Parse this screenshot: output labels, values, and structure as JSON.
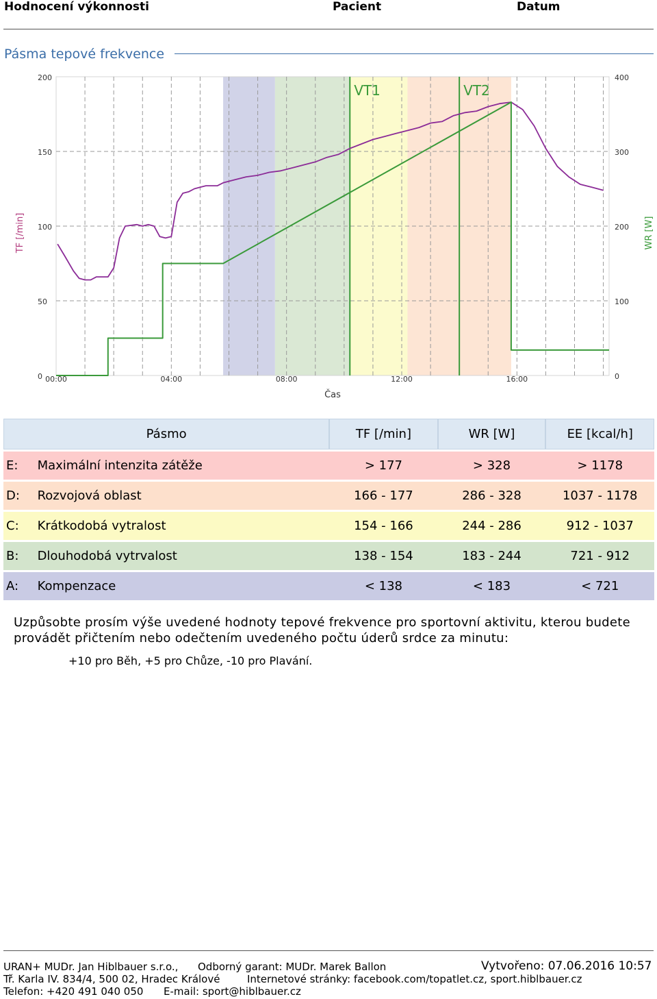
{
  "header": {
    "title": "Hodnocení výkonnosti",
    "patient_label": "Pacient",
    "date_label": "Datum"
  },
  "section": {
    "title": "Pásma tepové frekvence"
  },
  "chart_data": {
    "type": "line",
    "xlabel": "Čas",
    "ylabel_left": "TF [/min]",
    "ylabel_right": "WR [W]",
    "x_ticks": [
      "00:00",
      "04:00",
      "08:00",
      "12:00",
      "16:00"
    ],
    "y_ticks_left": [
      0,
      50,
      100,
      150,
      200
    ],
    "y_ticks_right": [
      0,
      100,
      200,
      300,
      400
    ],
    "xlim_min": [
      0,
      19.2
    ],
    "ylim_left": [
      0,
      200
    ],
    "ylim_right": [
      0,
      400
    ],
    "grid": true,
    "zones": [
      {
        "label": "A",
        "from_min": 5.8,
        "to_min": 7.6,
        "color": "#c9cbe4"
      },
      {
        "label": "B",
        "from_min": 7.6,
        "to_min": 10.2,
        "color": "#d3e4cc"
      },
      {
        "label": "C",
        "from_min": 10.2,
        "to_min": 12.2,
        "color": "#fcfac4"
      },
      {
        "label": "D",
        "from_min": 12.2,
        "to_min": 15.8,
        "color": "#fde0cc"
      }
    ],
    "markers": [
      {
        "label": "VT1",
        "x_min": 10.2
      },
      {
        "label": "VT2",
        "x_min": 14.0
      }
    ],
    "series": [
      {
        "axis": "left",
        "color": "#8b2b97",
        "points": [
          [
            0.05,
            88
          ],
          [
            0.3,
            80
          ],
          [
            0.6,
            70
          ],
          [
            0.8,
            65
          ],
          [
            1.0,
            64
          ],
          [
            1.2,
            64
          ],
          [
            1.4,
            66
          ],
          [
            1.6,
            66
          ],
          [
            1.8,
            66
          ],
          [
            2.0,
            72
          ],
          [
            2.2,
            92
          ],
          [
            2.4,
            100
          ],
          [
            2.8,
            101
          ],
          [
            3.0,
            100
          ],
          [
            3.2,
            101
          ],
          [
            3.4,
            100
          ],
          [
            3.6,
            93
          ],
          [
            3.8,
            92
          ],
          [
            4.0,
            93
          ],
          [
            4.2,
            116
          ],
          [
            4.4,
            122
          ],
          [
            4.6,
            123
          ],
          [
            4.8,
            125
          ],
          [
            5.0,
            126
          ],
          [
            5.2,
            127
          ],
          [
            5.6,
            127
          ],
          [
            5.8,
            129
          ],
          [
            6.2,
            131
          ],
          [
            6.6,
            133
          ],
          [
            7.0,
            134
          ],
          [
            7.4,
            136
          ],
          [
            7.8,
            137
          ],
          [
            8.2,
            139
          ],
          [
            8.6,
            141
          ],
          [
            9.0,
            143
          ],
          [
            9.4,
            146
          ],
          [
            9.8,
            148
          ],
          [
            10.2,
            152
          ],
          [
            10.6,
            155
          ],
          [
            11.0,
            158
          ],
          [
            11.4,
            160
          ],
          [
            11.8,
            162
          ],
          [
            12.2,
            164
          ],
          [
            12.6,
            166
          ],
          [
            13.0,
            169
          ],
          [
            13.4,
            170
          ],
          [
            13.8,
            174
          ],
          [
            14.2,
            176
          ],
          [
            14.6,
            177
          ],
          [
            15.0,
            180
          ],
          [
            15.4,
            182
          ],
          [
            15.8,
            183
          ],
          [
            16.2,
            178
          ],
          [
            16.6,
            167
          ],
          [
            17.0,
            152
          ],
          [
            17.4,
            140
          ],
          [
            17.8,
            133
          ],
          [
            18.2,
            128
          ],
          [
            18.6,
            126
          ],
          [
            19.0,
            124
          ]
        ]
      },
      {
        "axis": "right",
        "color": "#3a9a3a",
        "points": [
          [
            0,
            0
          ],
          [
            1.8,
            0
          ],
          [
            1.8,
            50
          ],
          [
            3.7,
            50
          ],
          [
            3.7,
            150
          ],
          [
            5.8,
            150
          ],
          [
            15.8,
            366
          ],
          [
            15.8,
            34
          ],
          [
            19.2,
            34
          ]
        ]
      }
    ]
  },
  "zones_table": {
    "headers": [
      "Pásmo",
      "TF [/min]",
      "WR [W]",
      "EE [kcal/h]"
    ],
    "rows": [
      {
        "key": "E:",
        "name": "Maximální intenzita zátěže",
        "tf": "> 177",
        "wr": "> 328",
        "ee": "> 1178",
        "color": "#fdcccc"
      },
      {
        "key": "D:",
        "name": "Rozvojová oblast",
        "tf": "166 - 177",
        "wr": "286 - 328",
        "ee": "1037 - 1178",
        "color": "#fde0cc"
      },
      {
        "key": "C:",
        "name": "Krátkodobá vytralost",
        "tf": "154 - 166",
        "wr": "244 - 286",
        "ee": "912 - 1037",
        "color": "#fcfac4"
      },
      {
        "key": "B:",
        "name": "Dlouhodobá vytrvalost",
        "tf": "138 - 154",
        "wr": "183 - 244",
        "ee": "721 - 912",
        "color": "#d3e4cc"
      },
      {
        "key": "A:",
        "name": "Kompenzace",
        "tf": "< 138",
        "wr": "< 183",
        "ee": "< 721",
        "color": "#c9cbe4"
      }
    ]
  },
  "note": {
    "text": "Uzpůsobte prosím výše uvedené hodnoty tepové frekvence pro sportovní aktivitu, kterou budete provádět přičtením nebo odečtením uvedeného počtu úderů srdce za minutu:",
    "adjust": "+10 pro Běh, +5 pro Chůze, -10 pro Plavání."
  },
  "footer": {
    "company": "URAN+ MUDr. Jan Hiblbauer s.r.o.,",
    "guarantor": "Odborný garant: MUDr. Marek Ballon",
    "created": "Vytvořeno: 07.06.2016 10:57",
    "address": "Tř. Karla IV. 834/4, 500 02, Hradec Králové",
    "web": "Internetové stránky: facebook.com/topatlet.cz, sport.hiblbauer.cz",
    "phone": "Telefon: +420 491 040 050",
    "email": "E-mail: sport@hiblbauer.cz"
  }
}
